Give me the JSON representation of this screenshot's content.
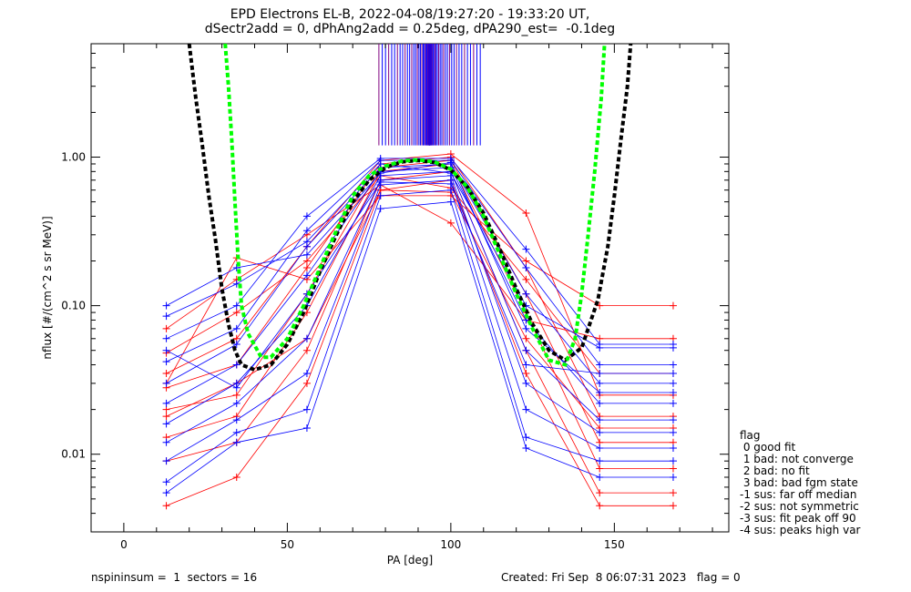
{
  "title": {
    "line1": "EPD Electrons EL-B, 2022-04-08/19:27:20 - 19:33:20 UT,",
    "line2": "dSectr2add = 0, dPhAng2add = 0.25deg, dPA290_est=  -0.1deg"
  },
  "footer": {
    "left": "nspininsum =  1  sectors = 16",
    "right": "Created: Fri Sep  8 06:07:31 2023   flag = 0"
  },
  "legend": {
    "title": "flag",
    "entries": [
      " 0 good fit",
      " 1 bad: not converge",
      " 2 bad: no fit",
      " 3 bad: bad fgm state",
      "-1 sus: far off median",
      "-2 sus: not symmetric",
      "-3 sus: fit peak off 90",
      "-4 sus: peaks high var"
    ]
  },
  "colors": {
    "series_a": "#ff0000",
    "series_b": "#0000ff",
    "fit_1": "#000000",
    "fit_2": "#00ff00",
    "tick_mark_a": "#800080",
    "tick_mark_b": "#0000ff"
  },
  "chart_data": {
    "type": "line",
    "xlabel": "PA [deg]",
    "ylabel": "nflux [#/(cm^2 s sr MeV)]",
    "xlim": [
      -10,
      185
    ],
    "ylim": [
      0.003,
      5.8
    ],
    "yscale": "log",
    "grid": false,
    "x_ticks": [
      0,
      50,
      100,
      150
    ],
    "x_tick_labels": [
      "0",
      "50",
      "100",
      "150"
    ],
    "y_ticks": [
      0.01,
      0.1,
      1.0
    ],
    "y_tick_labels": [
      "0.01",
      "0.10",
      "1.00"
    ],
    "pa_sectors": [
      13,
      34.5,
      56,
      78.5,
      100,
      123,
      145.5,
      168
    ],
    "series": [
      {
        "color": "red",
        "values": [
          0.0045,
          0.007,
          0.03,
          0.6,
          0.7,
          0.035,
          0.0045,
          0.0045
        ]
      },
      {
        "color": "red",
        "values": [
          0.009,
          0.012,
          0.05,
          0.7,
          0.8,
          0.05,
          0.0055,
          0.0055
        ]
      },
      {
        "color": "red",
        "values": [
          0.013,
          0.018,
          0.09,
          0.8,
          0.9,
          0.09,
          0.008,
          0.008
        ]
      },
      {
        "color": "red",
        "values": [
          0.02,
          0.025,
          0.12,
          0.85,
          0.95,
          0.12,
          0.012,
          0.012
        ]
      },
      {
        "color": "red",
        "values": [
          0.028,
          0.04,
          0.18,
          0.9,
          1.0,
          0.18,
          0.018,
          0.018
        ]
      },
      {
        "color": "red",
        "values": [
          0.035,
          0.06,
          0.25,
          0.95,
          1.05,
          0.42,
          0.025,
          0.025
        ]
      },
      {
        "color": "red",
        "values": [
          0.048,
          0.09,
          0.2,
          0.75,
          0.62,
          0.15,
          0.035,
          0.035
        ]
      },
      {
        "color": "red",
        "values": [
          0.07,
          0.15,
          0.3,
          0.65,
          0.36,
          0.08,
          0.06,
          0.06
        ]
      },
      {
        "color": "red",
        "values": [
          0.03,
          0.21,
          0.15,
          0.55,
          0.55,
          0.2,
          0.1,
          0.1
        ]
      },
      {
        "color": "red",
        "values": [
          0.018,
          0.03,
          0.06,
          0.6,
          0.58,
          0.06,
          0.015,
          0.015
        ]
      },
      {
        "color": "blue",
        "values": [
          0.0055,
          0.012,
          0.015,
          0.45,
          0.5,
          0.011,
          0.007,
          0.007
        ]
      },
      {
        "color": "blue",
        "values": [
          0.0065,
          0.014,
          0.02,
          0.55,
          0.6,
          0.013,
          0.009,
          0.009
        ]
      },
      {
        "color": "blue",
        "values": [
          0.009,
          0.017,
          0.035,
          0.65,
          0.7,
          0.02,
          0.011,
          0.011
        ]
      },
      {
        "color": "blue",
        "values": [
          0.012,
          0.022,
          0.06,
          0.7,
          0.75,
          0.03,
          0.014,
          0.014
        ]
      },
      {
        "color": "blue",
        "values": [
          0.016,
          0.03,
          0.1,
          0.75,
          0.8,
          0.05,
          0.017,
          0.017
        ]
      },
      {
        "color": "blue",
        "values": [
          0.022,
          0.04,
          0.16,
          0.8,
          0.85,
          0.08,
          0.022,
          0.022
        ]
      },
      {
        "color": "blue",
        "values": [
          0.03,
          0.055,
          0.25,
          0.85,
          0.9,
          0.12,
          0.03,
          0.03
        ]
      },
      {
        "color": "blue",
        "values": [
          0.042,
          0.07,
          0.32,
          0.95,
          0.95,
          0.18,
          0.04,
          0.04
        ]
      },
      {
        "color": "blue",
        "values": [
          0.06,
          0.1,
          0.4,
          0.98,
          0.98,
          0.24,
          0.055,
          0.055
        ]
      },
      {
        "color": "blue",
        "values": [
          0.085,
          0.14,
          0.27,
          0.9,
          0.78,
          0.1,
          0.052,
          0.052
        ]
      },
      {
        "color": "blue",
        "values": [
          0.1,
          0.18,
          0.22,
          0.78,
          0.92,
          0.07,
          0.026,
          0.026
        ]
      },
      {
        "color": "blue",
        "values": [
          0.05,
          0.028,
          0.12,
          0.68,
          0.66,
          0.04,
          0.035,
          0.035
        ]
      }
    ],
    "fit_curves": [
      {
        "color": "black",
        "points": [
          [
            20,
            5.8
          ],
          [
            22,
            2.5
          ],
          [
            24,
            1.2
          ],
          [
            26,
            0.55
          ],
          [
            28,
            0.28
          ],
          [
            30,
            0.13
          ],
          [
            32,
            0.075
          ],
          [
            34,
            0.05
          ],
          [
            36,
            0.04
          ],
          [
            40,
            0.037
          ],
          [
            45,
            0.04
          ],
          [
            50,
            0.055
          ],
          [
            55,
            0.09
          ],
          [
            60,
            0.17
          ],
          [
            65,
            0.3
          ],
          [
            70,
            0.5
          ],
          [
            75,
            0.7
          ],
          [
            80,
            0.85
          ],
          [
            85,
            0.93
          ],
          [
            90,
            0.95
          ],
          [
            95,
            0.92
          ],
          [
            100,
            0.82
          ],
          [
            105,
            0.63
          ],
          [
            110,
            0.42
          ],
          [
            115,
            0.24
          ],
          [
            120,
            0.13
          ],
          [
            125,
            0.075
          ],
          [
            130,
            0.05
          ],
          [
            135,
            0.043
          ],
          [
            140,
            0.052
          ],
          [
            145,
            0.11
          ],
          [
            148,
            0.25
          ],
          [
            150,
            0.55
          ],
          [
            152,
            1.3
          ],
          [
            154,
            3.0
          ],
          [
            155,
            5.8
          ]
        ]
      },
      {
        "color": "green",
        "points": [
          [
            31,
            5.8
          ],
          [
            32,
            3.0
          ],
          [
            33,
            1.3
          ],
          [
            34,
            0.5
          ],
          [
            35,
            0.2
          ],
          [
            36,
            0.1
          ],
          [
            38,
            0.065
          ],
          [
            42,
            0.045
          ],
          [
            45,
            0.045
          ],
          [
            50,
            0.06
          ],
          [
            55,
            0.1
          ],
          [
            60,
            0.18
          ],
          [
            65,
            0.32
          ],
          [
            70,
            0.55
          ],
          [
            75,
            0.75
          ],
          [
            80,
            0.87
          ],
          [
            85,
            0.94
          ],
          [
            90,
            0.96
          ],
          [
            95,
            0.93
          ],
          [
            100,
            0.83
          ],
          [
            105,
            0.63
          ],
          [
            110,
            0.4
          ],
          [
            115,
            0.22
          ],
          [
            120,
            0.12
          ],
          [
            125,
            0.07
          ],
          [
            130,
            0.043
          ],
          [
            135,
            0.04
          ],
          [
            138,
            0.06
          ],
          [
            140,
            0.12
          ],
          [
            142,
            0.3
          ],
          [
            144,
            0.8
          ],
          [
            146,
            2.5
          ],
          [
            147,
            5.8
          ]
        ]
      }
    ],
    "top_marks": {
      "pa_range": [
        78,
        109
      ],
      "count": 60,
      "y_from": 5.8,
      "y_to": 1.2
    }
  }
}
